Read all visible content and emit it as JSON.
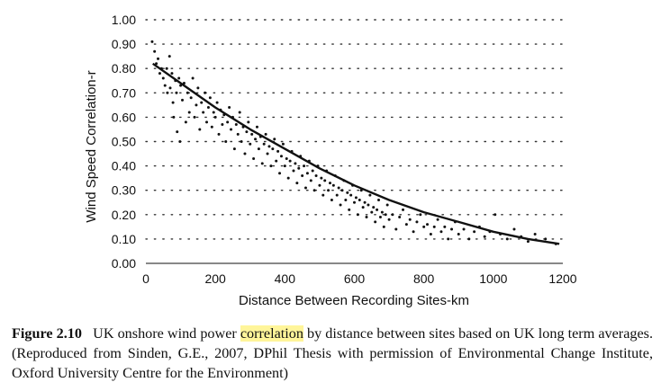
{
  "chart_data": {
    "type": "scatter",
    "xlabel": "Distance Between Recording Sites-km",
    "ylabel": "Wind Speed Correlation-r",
    "xlim": [
      0,
      1200
    ],
    "ylim": [
      0,
      1.0
    ],
    "x_ticks": [
      "0",
      "200",
      "400",
      "600",
      "800",
      "1000",
      "1200"
    ],
    "y_ticks": [
      "0.00",
      "0.10",
      "0.20",
      "0.30",
      "0.40",
      "0.50",
      "0.60",
      "0.70",
      "0.80",
      "0.90",
      "1.00"
    ],
    "grid": "horizontal-dotted",
    "series": [
      {
        "kind": "points",
        "color": "#111111",
        "points": [
          [
            18,
            0.91
          ],
          [
            25,
            0.87
          ],
          [
            30,
            0.82
          ],
          [
            35,
            0.84
          ],
          [
            40,
            0.78
          ],
          [
            45,
            0.8
          ],
          [
            50,
            0.76
          ],
          [
            55,
            0.73
          ],
          [
            60,
            0.8
          ],
          [
            62,
            0.7
          ],
          [
            68,
            0.85
          ],
          [
            70,
            0.72
          ],
          [
            75,
            0.78
          ],
          [
            78,
            0.66
          ],
          [
            80,
            0.6
          ],
          [
            85,
            0.75
          ],
          [
            88,
            0.7
          ],
          [
            90,
            0.54
          ],
          [
            95,
            0.76
          ],
          [
            98,
            0.5
          ],
          [
            100,
            0.73
          ],
          [
            105,
            0.67
          ],
          [
            110,
            0.74
          ],
          [
            115,
            0.58
          ],
          [
            120,
            0.7
          ],
          [
            125,
            0.62
          ],
          [
            130,
            0.68
          ],
          [
            135,
            0.76
          ],
          [
            140,
            0.6
          ],
          [
            145,
            0.65
          ],
          [
            150,
            0.72
          ],
          [
            155,
            0.55
          ],
          [
            160,
            0.66
          ],
          [
            165,
            0.62
          ],
          [
            170,
            0.7
          ],
          [
            175,
            0.58
          ],
          [
            180,
            0.64
          ],
          [
            185,
            0.68
          ],
          [
            190,
            0.56
          ],
          [
            195,
            0.62
          ],
          [
            200,
            0.6
          ],
          [
            205,
            0.66
          ],
          [
            210,
            0.53
          ],
          [
            215,
            0.63
          ],
          [
            220,
            0.57
          ],
          [
            225,
            0.61
          ],
          [
            230,
            0.5
          ],
          [
            235,
            0.58
          ],
          [
            240,
            0.64
          ],
          [
            245,
            0.55
          ],
          [
            250,
            0.6
          ],
          [
            255,
            0.47
          ],
          [
            260,
            0.57
          ],
          [
            265,
            0.53
          ],
          [
            270,
            0.62
          ],
          [
            275,
            0.5
          ],
          [
            280,
            0.56
          ],
          [
            285,
            0.45
          ],
          [
            290,
            0.54
          ],
          [
            295,
            0.58
          ],
          [
            300,
            0.49
          ],
          [
            305,
            0.53
          ],
          [
            310,
            0.43
          ],
          [
            315,
            0.51
          ],
          [
            320,
            0.56
          ],
          [
            325,
            0.47
          ],
          [
            330,
            0.52
          ],
          [
            335,
            0.41
          ],
          [
            340,
            0.49
          ],
          [
            345,
            0.53
          ],
          [
            350,
            0.45
          ],
          [
            355,
            0.48
          ],
          [
            360,
            0.4
          ],
          [
            365,
            0.47
          ],
          [
            370,
            0.51
          ],
          [
            375,
            0.42
          ],
          [
            380,
            0.46
          ],
          [
            385,
            0.37
          ],
          [
            390,
            0.44
          ],
          [
            395,
            0.49
          ],
          [
            400,
            0.4
          ],
          [
            405,
            0.43
          ],
          [
            410,
            0.35
          ],
          [
            415,
            0.42
          ],
          [
            420,
            0.46
          ],
          [
            425,
            0.38
          ],
          [
            430,
            0.41
          ],
          [
            435,
            0.33
          ],
          [
            440,
            0.39
          ],
          [
            445,
            0.44
          ],
          [
            450,
            0.36
          ],
          [
            455,
            0.4
          ],
          [
            460,
            0.31
          ],
          [
            465,
            0.37
          ],
          [
            470,
            0.42
          ],
          [
            475,
            0.34
          ],
          [
            480,
            0.38
          ],
          [
            485,
            0.3
          ],
          [
            490,
            0.36
          ],
          [
            495,
            0.4
          ],
          [
            500,
            0.32
          ],
          [
            505,
            0.35
          ],
          [
            510,
            0.28
          ],
          [
            515,
            0.34
          ],
          [
            520,
            0.38
          ],
          [
            525,
            0.3
          ],
          [
            530,
            0.33
          ],
          [
            535,
            0.26
          ],
          [
            540,
            0.32
          ],
          [
            545,
            0.36
          ],
          [
            550,
            0.28
          ],
          [
            555,
            0.31
          ],
          [
            560,
            0.24
          ],
          [
            565,
            0.3
          ],
          [
            570,
            0.34
          ],
          [
            575,
            0.26
          ],
          [
            580,
            0.29
          ],
          [
            585,
            0.22
          ],
          [
            590,
            0.28
          ],
          [
            595,
            0.32
          ],
          [
            600,
            0.25
          ],
          [
            605,
            0.27
          ],
          [
            610,
            0.2
          ],
          [
            615,
            0.26
          ],
          [
            620,
            0.3
          ],
          [
            625,
            0.23
          ],
          [
            630,
            0.25
          ],
          [
            635,
            0.19
          ],
          [
            640,
            0.24
          ],
          [
            645,
            0.28
          ],
          [
            650,
            0.21
          ],
          [
            655,
            0.23
          ],
          [
            660,
            0.17
          ],
          [
            665,
            0.22
          ],
          [
            670,
            0.26
          ],
          [
            675,
            0.19
          ],
          [
            680,
            0.21
          ],
          [
            685,
            0.15
          ],
          [
            690,
            0.2
          ],
          [
            695,
            0.24
          ],
          [
            700,
            0.18
          ],
          [
            710,
            0.2
          ],
          [
            720,
            0.14
          ],
          [
            730,
            0.19
          ],
          [
            740,
            0.22
          ],
          [
            750,
            0.16
          ],
          [
            760,
            0.18
          ],
          [
            770,
            0.13
          ],
          [
            780,
            0.17
          ],
          [
            790,
            0.2
          ],
          [
            800,
            0.15
          ],
          [
            810,
            0.16
          ],
          [
            820,
            0.12
          ],
          [
            830,
            0.15
          ],
          [
            840,
            0.18
          ],
          [
            850,
            0.13
          ],
          [
            860,
            0.15
          ],
          [
            870,
            0.1
          ],
          [
            880,
            0.14
          ],
          [
            890,
            0.17
          ],
          [
            900,
            0.12
          ],
          [
            915,
            0.14
          ],
          [
            930,
            0.1
          ],
          [
            945,
            0.13
          ],
          [
            960,
            0.15
          ],
          [
            975,
            0.11
          ],
          [
            990,
            0.13
          ],
          [
            1005,
            0.2
          ],
          [
            1020,
            0.12
          ],
          [
            1040,
            0.1
          ],
          [
            1060,
            0.14
          ],
          [
            1080,
            0.11
          ],
          [
            1100,
            0.09
          ],
          [
            1120,
            0.12
          ],
          [
            1150,
            0.1
          ],
          [
            1180,
            0.08
          ]
        ]
      },
      {
        "kind": "trendline",
        "color": "#111111",
        "x": [
          20,
          100,
          200,
          300,
          400,
          500,
          600,
          700,
          800,
          900,
          1000,
          1100,
          1190
        ],
        "y": [
          0.82,
          0.74,
          0.64,
          0.55,
          0.47,
          0.39,
          0.32,
          0.26,
          0.21,
          0.17,
          0.13,
          0.1,
          0.08
        ]
      }
    ]
  },
  "caption": {
    "figure_label": "Figure 2.10",
    "text_before": "UK onshore wind power",
    "highlight": "correlation",
    "text_after": "by distance between sites based on UK long term averages. (Reproduced from Sinden, G.E., 2007, DPhil Thesis with permission of Environmental Change Institute, Oxford University Centre for the Environment)"
  }
}
